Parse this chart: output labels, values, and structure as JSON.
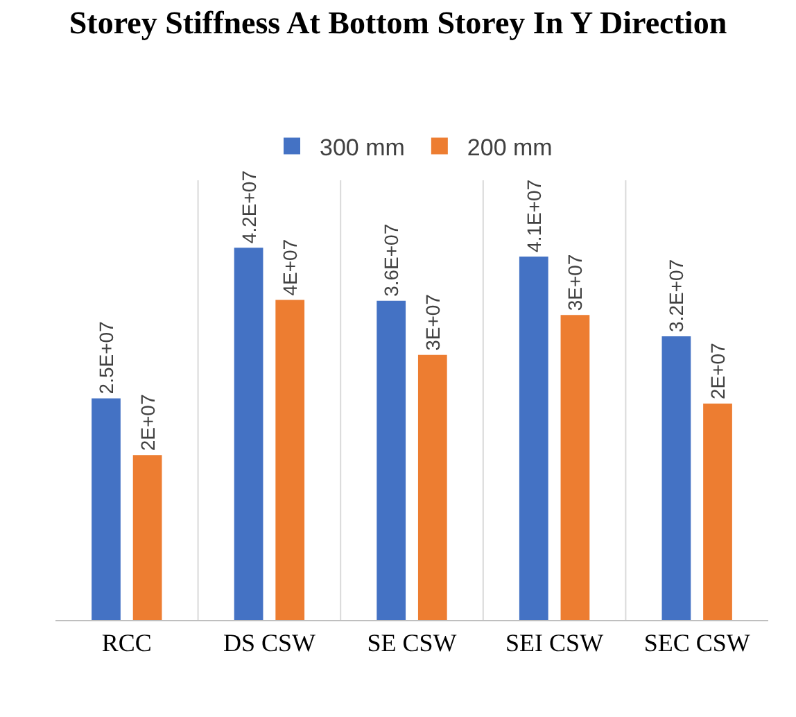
{
  "chart_data": {
    "type": "bar",
    "title": "Storey Stiffness At Bottom Storey In Y Direction",
    "categories": [
      "RCC",
      "DS CSW",
      "SE CSW",
      "SEI CSW",
      "SEC CSW"
    ],
    "series": [
      {
        "name": "300 mm",
        "color": "#4472c4",
        "values": [
          25000000,
          42000000,
          36000000,
          41000000,
          32000000
        ],
        "value_labels": [
          "2.5E+07",
          "4.2E+07",
          "3.6E+07",
          "4.1E+07",
          "3.2E+07"
        ]
      },
      {
        "name": "200 mm",
        "color": "#ed7d31",
        "values": [
          18600000,
          36100000,
          29900000,
          34400000,
          24400000
        ],
        "value_labels": [
          "2E+07",
          "4E+07",
          "3E+07",
          "3E+07",
          "2E+07"
        ]
      }
    ],
    "grid": "x",
    "legend": "top",
    "tick_labels": "x"
  }
}
